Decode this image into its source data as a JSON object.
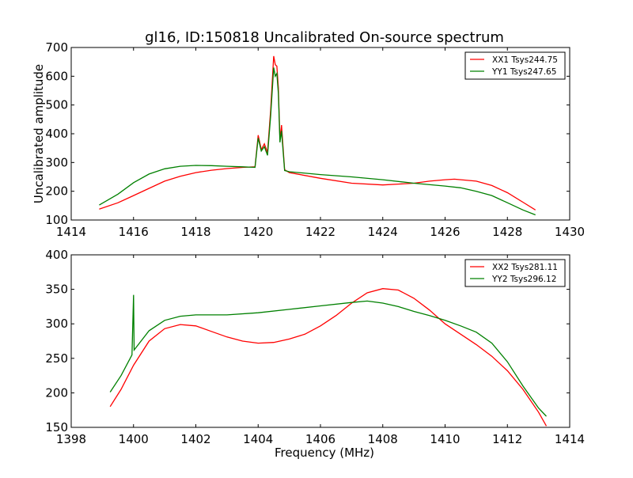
{
  "chart_data": [
    {
      "type": "line",
      "title": "gl16, ID:150818 Uncalibrated On-source spectrum",
      "xlabel": "",
      "ylabel": "Uncalibrated amplitude",
      "xlim": [
        1414,
        1430
      ],
      "ylim": [
        100,
        700
      ],
      "xticks": [
        1414,
        1416,
        1418,
        1420,
        1422,
        1424,
        1426,
        1428,
        1430
      ],
      "yticks": [
        100,
        200,
        300,
        400,
        500,
        600,
        700
      ],
      "legend_position": "top-right",
      "series": [
        {
          "name": "XX1 Tsys244.75",
          "color": "#ff0000",
          "x": [
            1414.9,
            1415.5,
            1416,
            1416.5,
            1417,
            1417.5,
            1418,
            1418.5,
            1419,
            1419.5,
            1419.9,
            1420,
            1420.1,
            1420.2,
            1420.3,
            1420.4,
            1420.5,
            1420.55,
            1420.6,
            1420.65,
            1420.7,
            1420.75,
            1420.85,
            1421,
            1422,
            1423,
            1424,
            1424.5,
            1425,
            1425.5,
            1426,
            1426.3,
            1427,
            1427.5,
            1428,
            1428.5,
            1428.9
          ],
          "y": [
            138,
            160,
            185,
            210,
            235,
            252,
            265,
            273,
            279,
            283,
            285,
            395,
            345,
            365,
            335,
            480,
            670,
            640,
            635,
            560,
            380,
            430,
            275,
            265,
            245,
            228,
            222,
            225,
            228,
            235,
            240,
            242,
            235,
            220,
            195,
            162,
            135
          ]
        },
        {
          "name": "YY1 Tsys247.65",
          "color": "#008000",
          "x": [
            1414.9,
            1415.5,
            1416,
            1416.5,
            1417,
            1417.5,
            1418,
            1418.5,
            1419,
            1419.5,
            1419.9,
            1420,
            1420.1,
            1420.2,
            1420.3,
            1420.4,
            1420.5,
            1420.55,
            1420.6,
            1420.65,
            1420.7,
            1420.75,
            1420.85,
            1421,
            1422,
            1423,
            1424,
            1425,
            1426,
            1426.5,
            1427,
            1427.5,
            1428,
            1428.5,
            1428.9
          ],
          "y": [
            152,
            190,
            230,
            260,
            278,
            287,
            290,
            289,
            287,
            285,
            283,
            385,
            340,
            355,
            325,
            460,
            630,
            600,
            610,
            540,
            370,
            410,
            272,
            268,
            258,
            250,
            240,
            228,
            218,
            212,
            200,
            185,
            160,
            135,
            118
          ]
        }
      ]
    },
    {
      "type": "line",
      "title": "",
      "xlabel": "Frequency (MHz)",
      "ylabel": "",
      "xlim": [
        1398,
        1414
      ],
      "ylim": [
        150,
        400
      ],
      "xticks": [
        1398,
        1400,
        1402,
        1404,
        1406,
        1408,
        1410,
        1412,
        1414
      ],
      "yticks": [
        150,
        200,
        250,
        300,
        350,
        400
      ],
      "legend_position": "top-right",
      "series": [
        {
          "name": "XX2 Tsys281.11",
          "color": "#ff0000",
          "x": [
            1399.25,
            1399.6,
            1400,
            1400.5,
            1401,
            1401.5,
            1402,
            1402.5,
            1403,
            1403.5,
            1404,
            1404.5,
            1405,
            1405.5,
            1406,
            1406.5,
            1407,
            1407.5,
            1408,
            1408.5,
            1409,
            1409.5,
            1410,
            1410.5,
            1411,
            1411.5,
            1412,
            1412.5,
            1413,
            1413.25
          ],
          "y": [
            180,
            205,
            240,
            275,
            293,
            299,
            297,
            289,
            281,
            275,
            272,
            273,
            278,
            285,
            297,
            312,
            330,
            345,
            351,
            349,
            337,
            320,
            300,
            285,
            270,
            253,
            232,
            205,
            172,
            152
          ]
        },
        {
          "name": "YY2 Tsys296.12",
          "color": "#008000",
          "x": [
            1399.25,
            1399.6,
            1399.95,
            1400,
            1400.02,
            1400.5,
            1401,
            1401.5,
            1402,
            1403,
            1404,
            1405,
            1406,
            1407,
            1407.5,
            1408,
            1408.5,
            1409,
            1409.5,
            1410,
            1410.5,
            1411,
            1411.5,
            1412,
            1412.5,
            1413,
            1413.25
          ],
          "y": [
            201,
            225,
            255,
            342,
            262,
            290,
            305,
            311,
            313,
            313,
            316,
            321,
            326,
            331,
            333,
            330,
            325,
            318,
            312,
            305,
            297,
            288,
            272,
            245,
            210,
            178,
            166
          ]
        }
      ]
    }
  ]
}
